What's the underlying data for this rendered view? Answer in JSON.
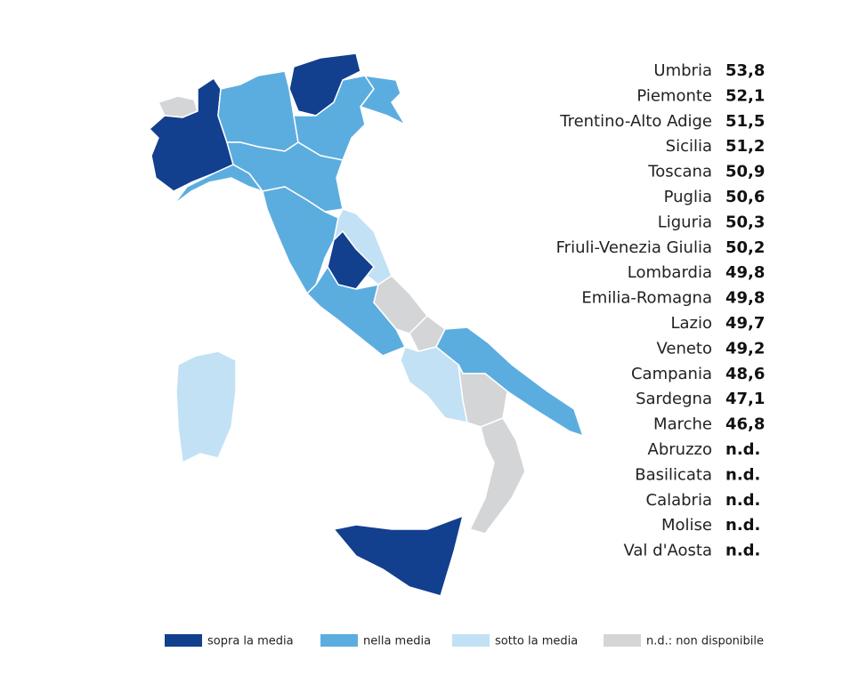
{
  "regions": [
    {
      "name": "Umbria",
      "value": "53,8",
      "group": 0
    },
    {
      "name": "Piemonte",
      "value": "52,1",
      "group": 0
    },
    {
      "name": "Trentino-Alto Adige",
      "value": "51,5",
      "group": 0
    },
    {
      "name": "Sicilia",
      "value": "51,2",
      "group": 0
    },
    {
      "name": "Toscana",
      "value": "50,9",
      "group": 1
    },
    {
      "name": "Puglia",
      "value": "50,6",
      "group": 1
    },
    {
      "name": "Liguria",
      "value": "50,3",
      "group": 1
    },
    {
      "name": "Friuli-Venezia Giulia",
      "value": "50,2",
      "group": 1
    },
    {
      "name": "Lombardia",
      "value": "49,8",
      "group": 1
    },
    {
      "name": "Emilia-Romagna",
      "value": "49,8",
      "group": 1
    },
    {
      "name": "Lazio",
      "value": "49,7",
      "group": 1
    },
    {
      "name": "Veneto",
      "value": "49,2",
      "group": 1
    },
    {
      "name": "Campania",
      "value": "48,6",
      "group": 2
    },
    {
      "name": "Sardegna",
      "value": "47,1",
      "group": 2
    },
    {
      "name": "Marche",
      "value": "46,8",
      "group": 2
    },
    {
      "name": "Abruzzo",
      "value": "n.d.",
      "group": 3
    },
    {
      "name": "Basilicata",
      "value": "n.d.",
      "group": 3
    },
    {
      "name": "Calabria",
      "value": "n.d.",
      "group": 3
    },
    {
      "name": "Molise",
      "value": "n.d.",
      "group": 3
    },
    {
      "name": "Val d'Aosta",
      "value": "n.d.",
      "group": 3
    }
  ],
  "legend": [
    {
      "label": "sopra la media",
      "color": "#123f8e"
    },
    {
      "label": "nella media",
      "color": "#5caddf"
    },
    {
      "label": "sotto la media",
      "color": "#c2e1f5"
    },
    {
      "label": "n.d.: non disponibile",
      "color": "#d4d5d7"
    }
  ]
}
